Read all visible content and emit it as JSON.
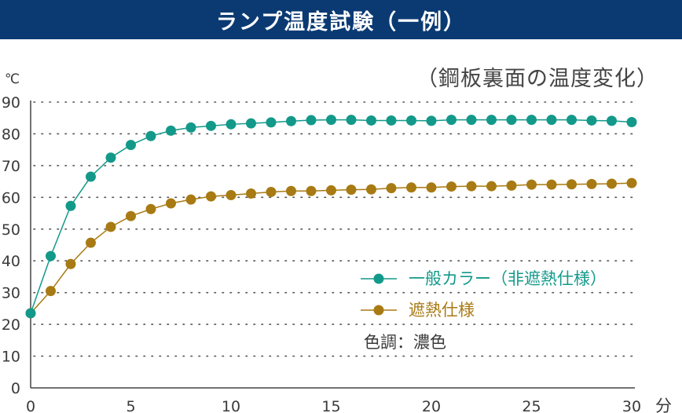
{
  "header": {
    "title": "ランプ温度試験（一例）"
  },
  "chart_data": {
    "type": "line",
    "title": "ランプ温度試験（一例）",
    "subtitle": "（鋼板裏面の温度変化）",
    "ylabel": "℃",
    "xlabel": "分",
    "xlim": [
      0,
      30
    ],
    "ylim": [
      0,
      90
    ],
    "x_ticks": [
      "0",
      "5",
      "10",
      "15",
      "20",
      "25",
      "30"
    ],
    "y_ticks": [
      "0",
      "10",
      "20",
      "30",
      "40",
      "50",
      "60",
      "70",
      "80",
      "90"
    ],
    "grid": "dotted horizontal",
    "legend_position": "center-right",
    "x": [
      0,
      1,
      2,
      3,
      4,
      5,
      6,
      7,
      8,
      9,
      10,
      11,
      12,
      13,
      14,
      15,
      16,
      17,
      18,
      19,
      20,
      21,
      22,
      23,
      24,
      25,
      26,
      27,
      28,
      29,
      30
    ],
    "series": [
      {
        "name": "一般カラー（非遮熱仕様）",
        "color": "#13998a",
        "values": [
          23.5,
          41.5,
          57.3,
          66.5,
          72.5,
          76.5,
          79.3,
          81,
          82,
          82.5,
          83,
          83.3,
          83.6,
          84,
          84.3,
          84.4,
          84.4,
          84.2,
          84.2,
          84.2,
          84.1,
          84.4,
          84.4,
          84.4,
          84.4,
          84.4,
          84.4,
          84.4,
          84.2,
          84.1,
          83.7
        ]
      },
      {
        "name": "遮熱仕様",
        "color": "#a87a13",
        "values": [
          23.5,
          30.5,
          39,
          45.7,
          50.7,
          54.1,
          56.3,
          58.1,
          59.3,
          60.3,
          60.7,
          61.2,
          61.7,
          62,
          62,
          62.2,
          62.4,
          62.5,
          62.9,
          63.1,
          63.1,
          63.4,
          63.5,
          63.5,
          63.7,
          64,
          64,
          64.1,
          64.2,
          64.3,
          64.5
        ]
      }
    ],
    "note": "色調：濃色"
  }
}
